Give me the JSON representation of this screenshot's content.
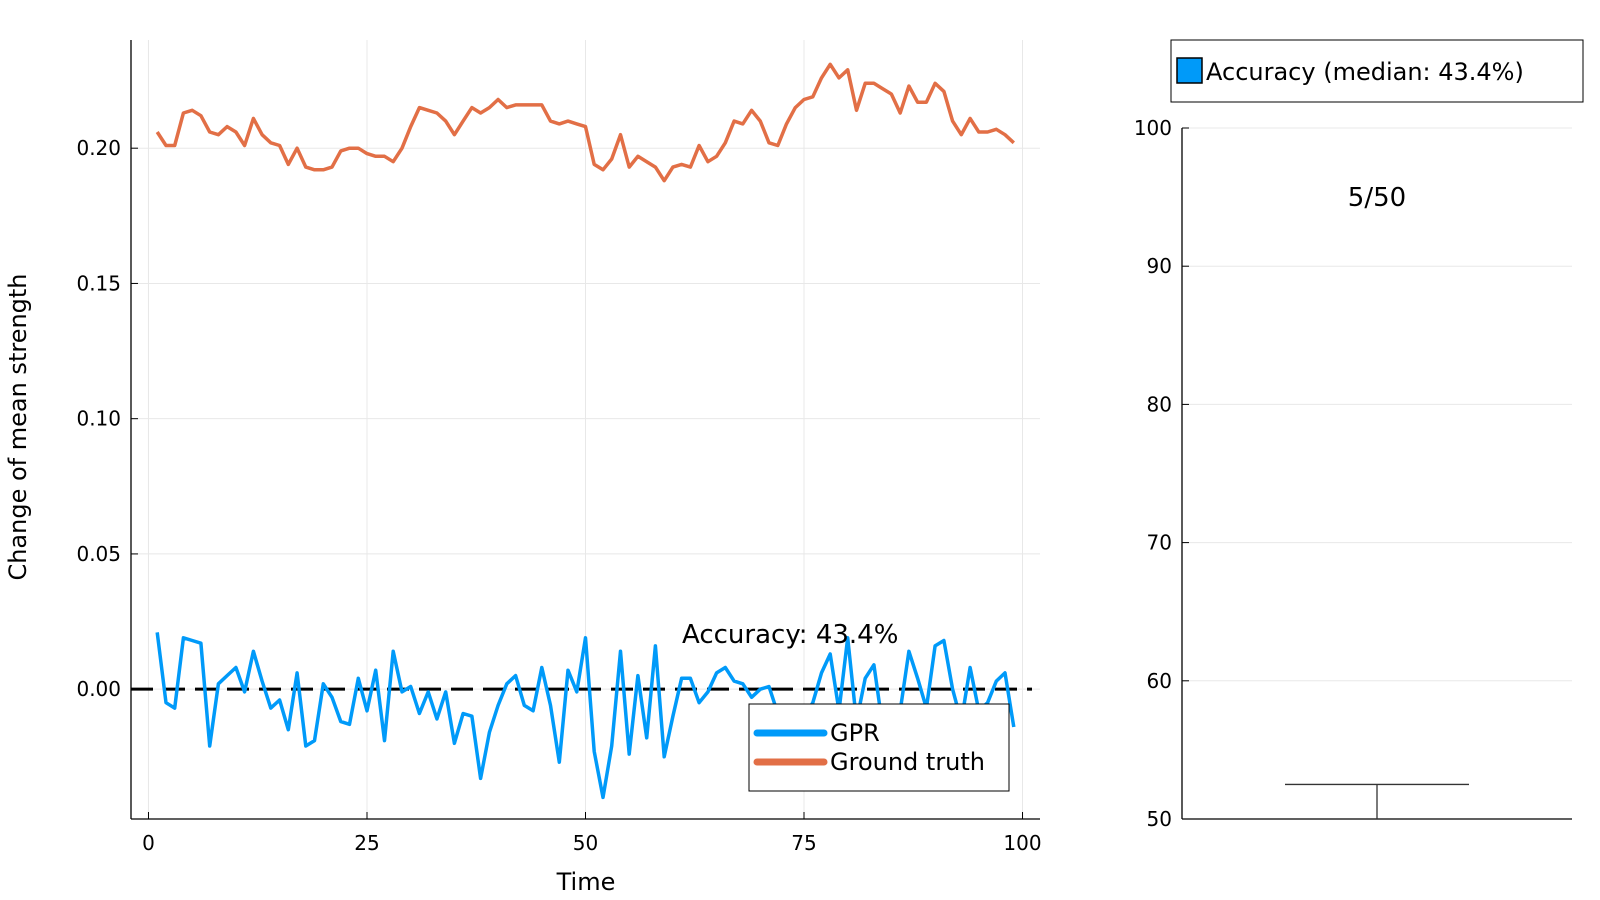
{
  "chart_data": [
    {
      "type": "line",
      "xlabel": "Time",
      "ylabel": "Change of mean strength",
      "xlim": [
        -2,
        102
      ],
      "ylim": [
        -0.048,
        0.24
      ],
      "xticks": [
        0,
        25,
        50,
        75,
        100
      ],
      "xtick_labels": [
        "0",
        "25",
        "50",
        "75",
        "100"
      ],
      "yticks": [
        0.0,
        0.05,
        0.1,
        0.15,
        0.2
      ],
      "ytick_labels": [
        "0.00",
        "0.05",
        "0.10",
        "0.15",
        "0.20"
      ],
      "grid": true,
      "legend_position": "bottom-right",
      "annotation": "Accuracy: 43.4%",
      "reference_line": {
        "y": 0.0,
        "style": "dashed",
        "color": "#000000"
      },
      "x": [
        1,
        2,
        3,
        4,
        5,
        6,
        7,
        8,
        9,
        10,
        11,
        12,
        13,
        14,
        15,
        16,
        17,
        18,
        19,
        20,
        21,
        22,
        23,
        24,
        25,
        26,
        27,
        28,
        29,
        30,
        31,
        32,
        33,
        34,
        35,
        36,
        37,
        38,
        39,
        40,
        41,
        42,
        43,
        44,
        45,
        46,
        47,
        48,
        49,
        50,
        51,
        52,
        53,
        54,
        55,
        56,
        57,
        58,
        59,
        60,
        61,
        62,
        63,
        64,
        65,
        66,
        67,
        68,
        69,
        70,
        71,
        72,
        73,
        74,
        75,
        76,
        77,
        78,
        79,
        80,
        81,
        82,
        83,
        84,
        85,
        86,
        87,
        88,
        89,
        90,
        91,
        92,
        93,
        94,
        95,
        96,
        97,
        98,
        99
      ],
      "series": [
        {
          "name": "GPR",
          "color": "#009af9",
          "values": [
            0.021,
            -0.005,
            -0.007,
            0.019,
            0.018,
            0.017,
            -0.021,
            0.002,
            0.005,
            0.008,
            -0.001,
            0.014,
            0.003,
            -0.007,
            -0.004,
            -0.015,
            0.006,
            -0.021,
            -0.019,
            0.002,
            -0.003,
            -0.012,
            -0.013,
            0.004,
            -0.008,
            0.007,
            -0.019,
            0.014,
            -0.001,
            0.001,
            -0.009,
            -0.001,
            -0.011,
            -0.001,
            -0.02,
            -0.009,
            -0.01,
            -0.033,
            -0.016,
            -0.006,
            0.002,
            0.005,
            -0.006,
            -0.008,
            0.008,
            -0.006,
            -0.027,
            0.007,
            -0.001,
            0.019,
            -0.023,
            -0.04,
            -0.021,
            0.014,
            -0.024,
            0.005,
            -0.018,
            0.016,
            -0.025,
            -0.01,
            0.004,
            0.004,
            -0.005,
            -0.001,
            0.006,
            0.008,
            0.003,
            0.002,
            -0.003,
            0.0,
            0.001,
            -0.009,
            -0.012,
            -0.013,
            -0.01,
            -0.005,
            0.006,
            0.013,
            -0.008,
            0.019,
            -0.012,
            0.004,
            0.009,
            -0.014,
            -0.012,
            -0.008,
            0.014,
            0.004,
            -0.007,
            0.016,
            0.018,
            0.0,
            -0.012,
            0.008,
            -0.008,
            -0.005,
            0.003,
            0.006,
            -0.014
          ]
        },
        {
          "name": "Ground truth",
          "color": "#e26f46",
          "values": [
            0.206,
            0.201,
            0.201,
            0.213,
            0.214,
            0.212,
            0.206,
            0.205,
            0.208,
            0.206,
            0.201,
            0.211,
            0.205,
            0.202,
            0.201,
            0.194,
            0.2,
            0.193,
            0.192,
            0.192,
            0.193,
            0.199,
            0.2,
            0.2,
            0.198,
            0.197,
            0.197,
            0.195,
            0.2,
            0.208,
            0.215,
            0.214,
            0.213,
            0.21,
            0.205,
            0.21,
            0.215,
            0.213,
            0.215,
            0.218,
            0.215,
            0.216,
            0.216,
            0.216,
            0.216,
            0.21,
            0.209,
            0.21,
            0.209,
            0.208,
            0.194,
            0.192,
            0.196,
            0.205,
            0.193,
            0.197,
            0.195,
            0.193,
            0.188,
            0.193,
            0.194,
            0.193,
            0.201,
            0.195,
            0.197,
            0.202,
            0.21,
            0.209,
            0.214,
            0.21,
            0.202,
            0.201,
            0.209,
            0.215,
            0.218,
            0.219,
            0.226,
            0.231,
            0.226,
            0.229,
            0.214,
            0.224,
            0.224,
            0.222,
            0.22,
            0.213,
            0.223,
            0.217,
            0.217,
            0.224,
            0.221,
            0.21,
            0.205,
            0.211,
            0.206,
            0.206,
            0.207,
            0.205,
            0.202
          ]
        }
      ]
    },
    {
      "type": "box",
      "ylim": [
        50,
        105
      ],
      "yticks": [
        50,
        60,
        70,
        80,
        90,
        100
      ],
      "ytick_labels": [
        "50",
        "60",
        "70",
        "80",
        "90",
        "100"
      ],
      "grid": true,
      "legend_position": "top-right",
      "annotation": "5/50",
      "series": [
        {
          "name": "Accuracy (median: 43.4%)",
          "color": "#009af9",
          "visible_whisker_cap": 52.5
        }
      ]
    }
  ]
}
